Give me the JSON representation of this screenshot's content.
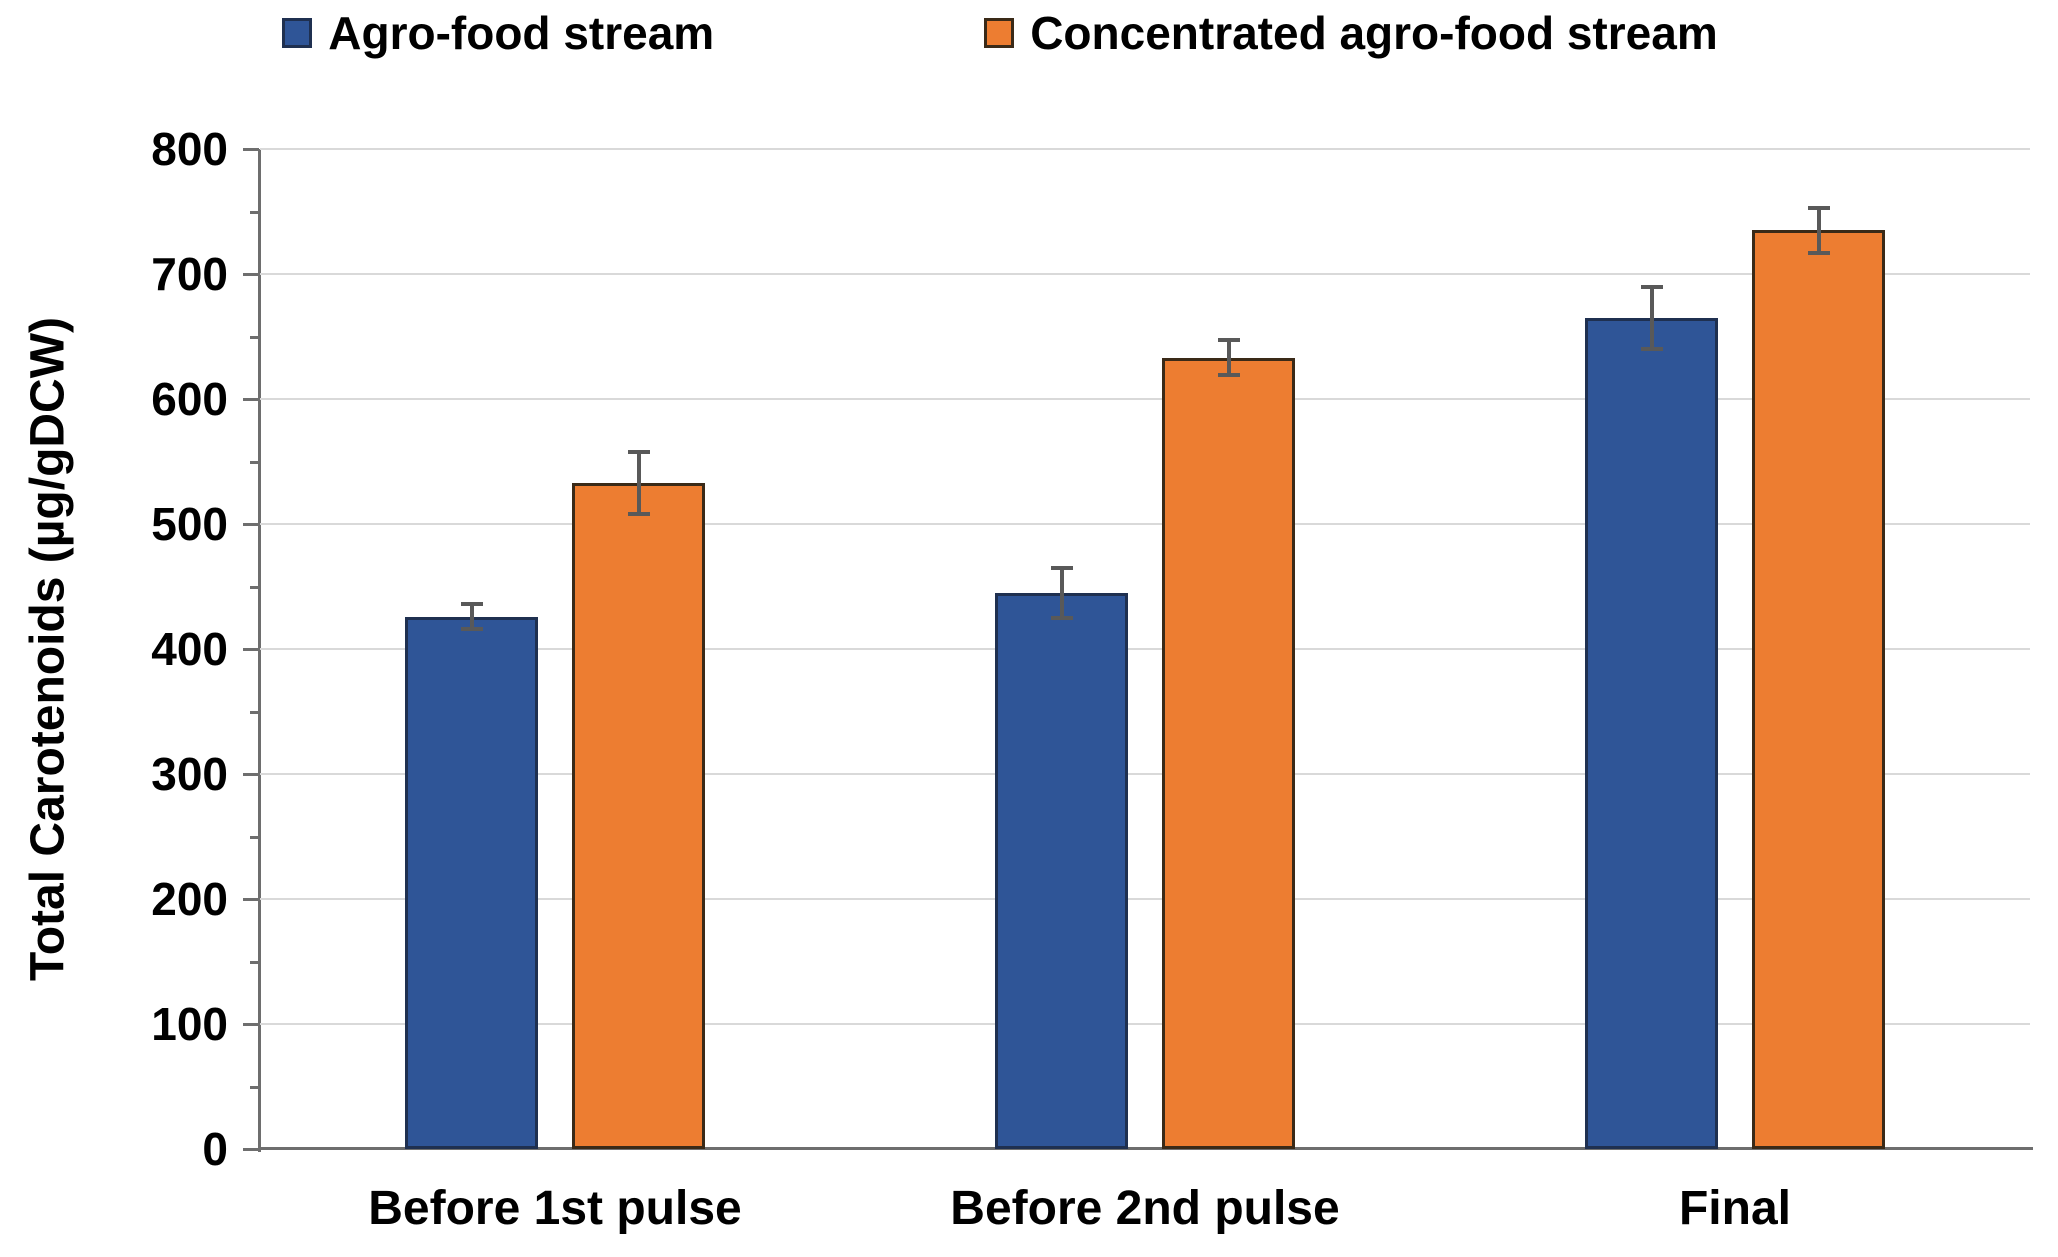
{
  "chart_data": {
    "type": "bar",
    "title": "",
    "xlabel": "",
    "ylabel": "Total Carotenoids (µg/gDCW)",
    "categories": [
      "Before 1st pulse",
      "Before 2nd pulse",
      "Final"
    ],
    "series": [
      {
        "name": "Agro-food stream",
        "color": "#2F5597",
        "border_color": "#1F3050",
        "values": [
          426,
          445,
          665
        ],
        "errors": [
          10,
          20,
          25
        ]
      },
      {
        "name": "Concentrated agro-food stream",
        "color": "#ED7D31",
        "border_color": "#3A2A18",
        "values": [
          533,
          633,
          735
        ],
        "errors": [
          25,
          14,
          18
        ]
      }
    ],
    "ylim": [
      0,
      800
    ],
    "yticks": [
      0,
      100,
      200,
      300,
      400,
      500,
      600,
      700,
      800
    ],
    "minor_yticks": [
      50,
      150,
      250,
      350,
      450,
      550,
      650,
      750
    ],
    "grid": "horizontal",
    "legend_position": "top"
  },
  "style": {
    "grid_color": "#D9D9D9",
    "axis_color": "#6E6E6E",
    "error_bar_color": "#595959",
    "text_color": "#000000",
    "background_color": "#FFFFFF"
  }
}
